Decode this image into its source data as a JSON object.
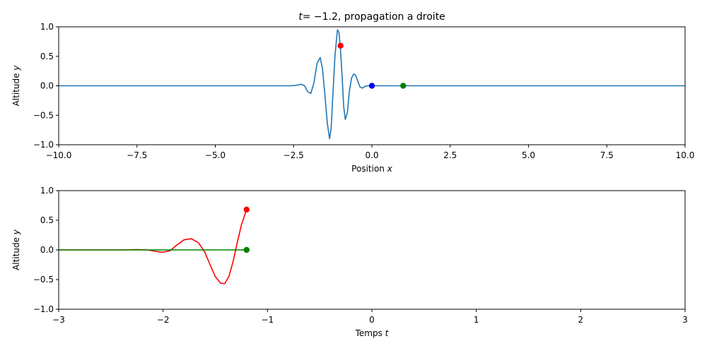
{
  "title": {
    "math_var": "t",
    "math_rest": "= −1.2",
    "text": ", propagation a droite"
  },
  "colors": {
    "wave": "#1f77b4",
    "red": "#ff0000",
    "blue": "#0000ff",
    "green": "#008000"
  },
  "chart_data": [
    {
      "type": "line",
      "xlabel": {
        "text": "Position ",
        "var": "x"
      },
      "ylabel": {
        "text": "Altitude ",
        "var": "y"
      },
      "xlim": [
        -10,
        10
      ],
      "ylim": [
        -1,
        1
      ],
      "xticks": [
        -10,
        -7.5,
        -5,
        -2.5,
        0,
        2.5,
        5,
        7.5,
        10
      ],
      "xtick_labels": [
        "−10.0",
        "−7.5",
        "−5.0",
        "−2.5",
        "0.0",
        "2.5",
        "5.0",
        "7.5",
        "10.0"
      ],
      "yticks": [
        -1,
        -0.5,
        0,
        0.5,
        1
      ],
      "ytick_labels": [
        "−1.0",
        "−0.5",
        "0.0",
        "0.5",
        "1.0"
      ],
      "series": [
        {
          "color": "#1f77b4",
          "x": [
            -10,
            -3,
            -2.6,
            -2.45,
            -2.35,
            -2.25,
            -2.15,
            -2.05,
            -1.95,
            -1.85,
            -1.75,
            -1.65,
            -1.58,
            -1.5,
            -1.42,
            -1.35,
            -1.3,
            -1.25,
            -1.18,
            -1.1,
            -1.05,
            -1.0,
            -0.95,
            -0.9,
            -0.85,
            -0.78,
            -0.72,
            -0.65,
            -0.58,
            -0.52,
            -0.45,
            -0.38,
            -0.3,
            -0.22,
            -0.14,
            -0.06,
            0,
            0.2,
            0.5,
            1,
            10
          ],
          "y": [
            0,
            0,
            0,
            0.005,
            0.015,
            0.025,
            0.0,
            -0.1,
            -0.13,
            0.05,
            0.38,
            0.48,
            0.3,
            -0.15,
            -0.65,
            -0.9,
            -0.72,
            -0.2,
            0.5,
            0.95,
            0.9,
            0.6,
            0.15,
            -0.35,
            -0.57,
            -0.45,
            -0.1,
            0.13,
            0.2,
            0.18,
            0.08,
            -0.02,
            -0.04,
            -0.01,
            0.0,
            0.0,
            0,
            0,
            0,
            0,
            0
          ]
        }
      ],
      "markers": [
        {
          "x": -1.0,
          "y": 0.68,
          "color": "#ff0000"
        },
        {
          "x": 0.0,
          "y": 0.0,
          "color": "#0000ff"
        },
        {
          "x": 1.0,
          "y": 0.0,
          "color": "#008000"
        }
      ]
    },
    {
      "type": "line",
      "xlabel": {
        "text": "Temps ",
        "var": "t"
      },
      "ylabel": {
        "text": "Altitude ",
        "var": "y"
      },
      "xlim": [
        -3,
        3
      ],
      "ylim": [
        -1,
        1
      ],
      "xticks": [
        -3,
        -2,
        -1,
        0,
        1,
        2,
        3
      ],
      "xtick_labels": [
        "−3",
        "−2",
        "−1",
        "0",
        "1",
        "2",
        "3"
      ],
      "yticks": [
        -1,
        -0.5,
        0,
        0.5,
        1
      ],
      "ytick_labels": [
        "−1.0",
        "−0.5",
        "0.0",
        "0.5",
        "1.0"
      ],
      "series": [
        {
          "color": "#ff0000",
          "x": [
            -3,
            -2.4,
            -2.25,
            -2.15,
            -2.05,
            -2.0,
            -1.93,
            -1.87,
            -1.8,
            -1.73,
            -1.66,
            -1.6,
            -1.55,
            -1.5,
            -1.45,
            -1.41,
            -1.37,
            -1.33,
            -1.29,
            -1.25,
            -1.2
          ],
          "y": [
            0,
            0,
            0.005,
            0.0,
            -0.03,
            -0.04,
            -0.01,
            0.08,
            0.17,
            0.19,
            0.12,
            -0.04,
            -0.25,
            -0.45,
            -0.56,
            -0.57,
            -0.45,
            -0.2,
            0.12,
            0.42,
            0.68
          ]
        },
        {
          "color": "#008000",
          "x": [
            -3,
            -1.2
          ],
          "y": [
            0,
            0
          ]
        }
      ],
      "markers": [
        {
          "x": -1.2,
          "y": 0.68,
          "color": "#ff0000"
        },
        {
          "x": -1.2,
          "y": 0.0,
          "color": "#008000"
        }
      ]
    }
  ]
}
